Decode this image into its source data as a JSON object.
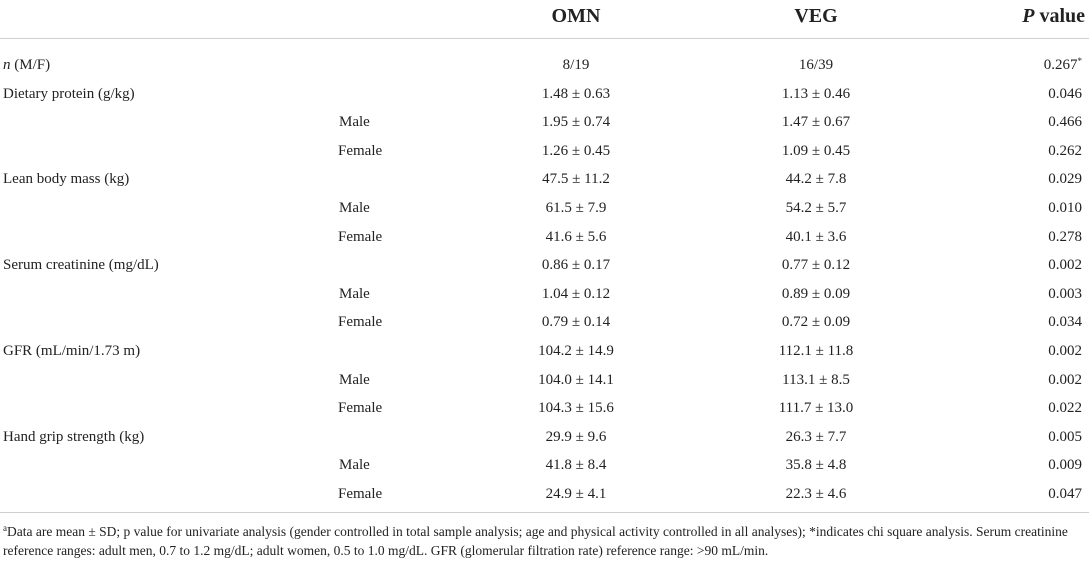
{
  "header": {
    "col_omn": "OMN",
    "col_veg": "VEG",
    "col_p_italic": "P",
    "col_p_rest": " value"
  },
  "first_row": {
    "label_italic": "n",
    "label_rest": " (M/F)",
    "omn": "8/19",
    "veg": "16/39",
    "p": "0.267",
    "p_mark": "*"
  },
  "rows": [
    {
      "label": "Dietary protein (g/kg)",
      "omn": "1.48 ± 0.63",
      "veg": "1.13 ± 0.46",
      "p": "0.046"
    },
    {
      "label": "Male",
      "omn": "1.95 ± 0.74",
      "veg": "1.47 ± 0.67",
      "p": "0.466"
    },
    {
      "label": "Female",
      "omn": "1.26 ± 0.45",
      "veg": "1.09 ± 0.45",
      "p": "0.262"
    },
    {
      "label": "Lean body mass (kg)",
      "omn": "47.5 ± 11.2",
      "veg": "44.2 ± 7.8",
      "p": "0.029"
    },
    {
      "label": "Male",
      "omn": "61.5 ± 7.9",
      "veg": "54.2 ± 5.7",
      "p": "0.010"
    },
    {
      "label": "Female",
      "omn": "41.6 ± 5.6",
      "veg": "40.1 ± 3.6",
      "p": "0.278"
    },
    {
      "label": "Serum creatinine (mg/dL)",
      "omn": "0.86 ± 0.17",
      "veg": "0.77 ± 0.12",
      "p": "0.002"
    },
    {
      "label": "Male",
      "omn": "1.04 ± 0.12",
      "veg": "0.89 ± 0.09",
      "p": "0.003"
    },
    {
      "label": "Female",
      "omn": "0.79 ± 0.14",
      "veg": "0.72 ± 0.09",
      "p": "0.034"
    },
    {
      "label": "GFR (mL/min/1.73 m)",
      "omn": "104.2 ± 14.9",
      "veg": "112.1 ± 11.8",
      "p": "0.002"
    },
    {
      "label": "Male",
      "omn": "104.0 ± 14.1",
      "veg": "113.1 ± 8.5",
      "p": "0.002"
    },
    {
      "label": "Female",
      "omn": "104.3 ± 15.6",
      "veg": "111.7 ± 13.0",
      "p": "0.022"
    },
    {
      "label": "Hand grip strength (kg)",
      "omn": "29.9 ± 9.6",
      "veg": "26.3 ± 7.7",
      "p": "0.005"
    },
    {
      "label": "Male",
      "omn": "41.8 ± 8.4",
      "veg": "35.8 ± 4.8",
      "p": "0.009"
    },
    {
      "label": "Female",
      "omn": "24.9 ± 4.1",
      "veg": "22.3 ± 4.6",
      "p": "0.047"
    }
  ],
  "footnote": {
    "mark": "a",
    "text": "Data are mean ± SD; p value for univariate analysis (gender controlled in total sample analysis; age and physical activity controlled in all analyses); *indicates chi square analysis. Serum creatinine reference ranges: adult men, 0.7 to 1.2 mg/dL; adult women, 0.5 to 1.0 mg/dL. GFR (glomerular filtration rate) reference range: >90 mL/min."
  }
}
